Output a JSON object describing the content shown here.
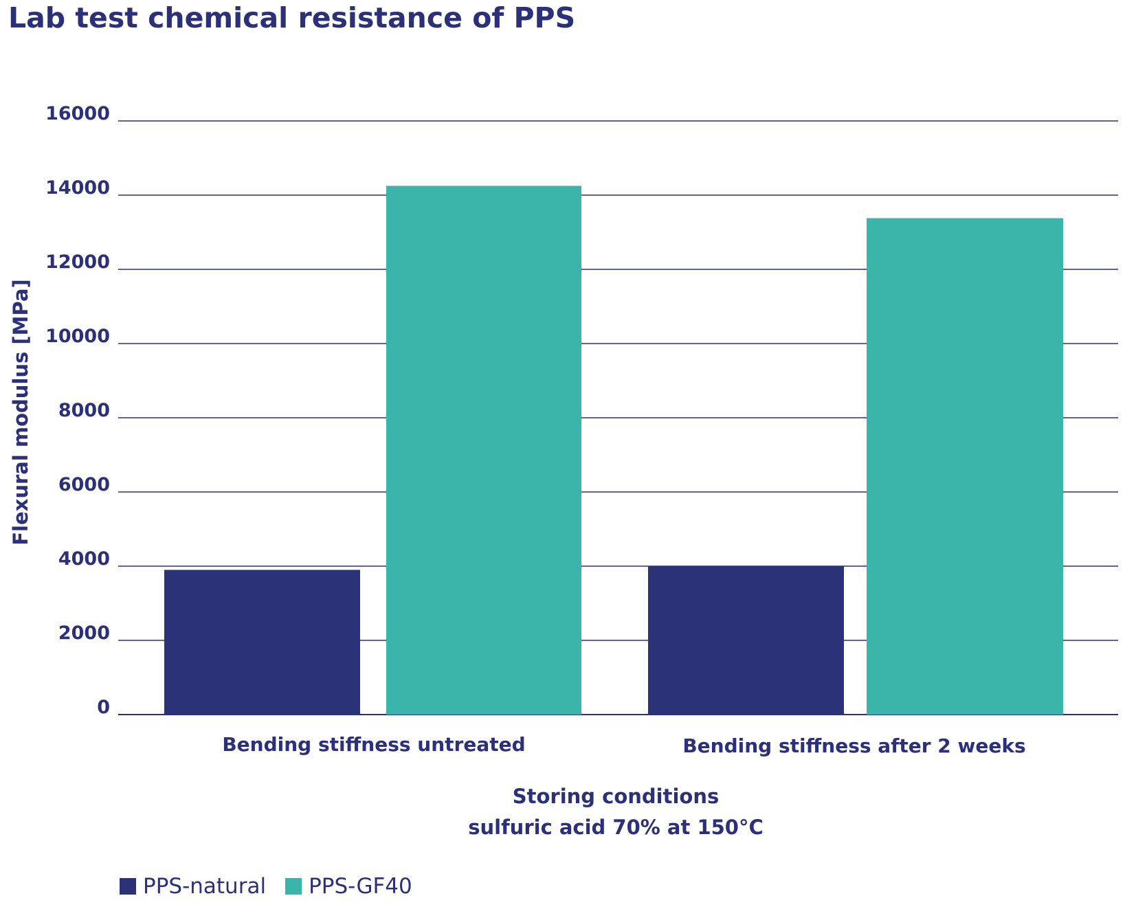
{
  "chart_data": {
    "type": "bar",
    "title": "Lab test chemical resistance of PPS",
    "ylabel": "Flexural modulus [MPa]",
    "xlabel_lines": [
      "Storing conditions",
      "sulfuric acid 70% at 150°C"
    ],
    "categories": [
      "Bending stiffness untreated",
      "Bending stiffness after 2 weeks"
    ],
    "series": [
      {
        "name": "PPS-natural",
        "color": "#2b3278",
        "values": [
          3900,
          4000
        ]
      },
      {
        "name": "PPS-GF40",
        "color": "#3bb5aa",
        "values": [
          14250,
          13380
        ]
      }
    ],
    "ylim": [
      0,
      16000
    ],
    "yticks": [
      "0",
      "2000",
      "4000",
      "6000",
      "8000",
      "10000",
      "12000",
      "14000",
      "16000"
    ],
    "grid": true,
    "legend_position": "bottom-left"
  }
}
